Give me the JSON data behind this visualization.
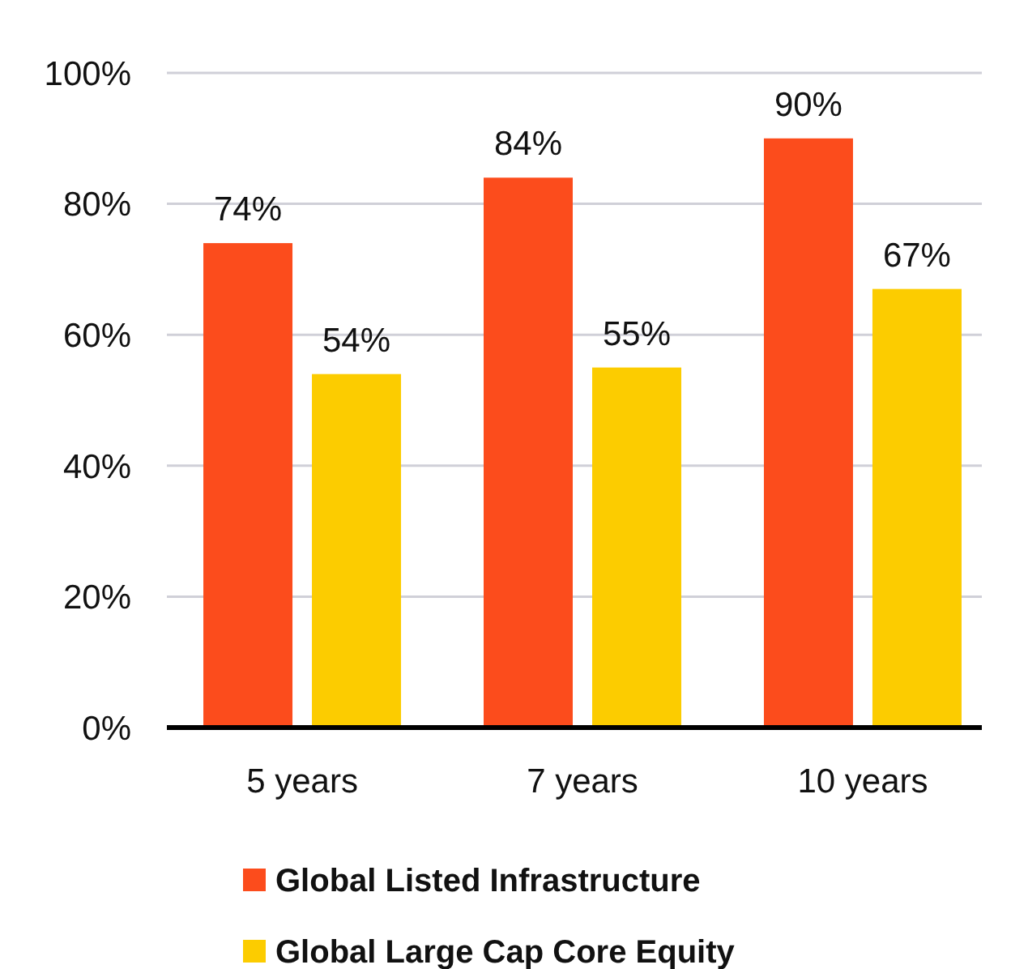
{
  "chart_data": {
    "type": "bar",
    "categories": [
      "5 years",
      "7 years",
      "10 years"
    ],
    "series": [
      {
        "name": "Global Listed Infrastructure",
        "color": "#fc4c1c",
        "values": [
          74,
          84,
          90
        ]
      },
      {
        "name": "Global Large Cap Core Equity",
        "color": "#fccc00",
        "values": [
          54,
          55,
          67
        ]
      }
    ],
    "ylim": [
      0,
      100
    ],
    "yticks": [
      {
        "value": 0,
        "label": "0%"
      },
      {
        "value": 20,
        "label": "20%"
      },
      {
        "value": 40,
        "label": "40%"
      },
      {
        "value": 60,
        "label": "60%"
      },
      {
        "value": 80,
        "label": "80%"
      },
      {
        "value": 100,
        "label": "100%"
      }
    ],
    "value_labels": [
      [
        "74%",
        "84%",
        "90%"
      ],
      [
        "54%",
        "55%",
        "67%"
      ]
    ],
    "grid": "y",
    "legend": "bottom"
  }
}
